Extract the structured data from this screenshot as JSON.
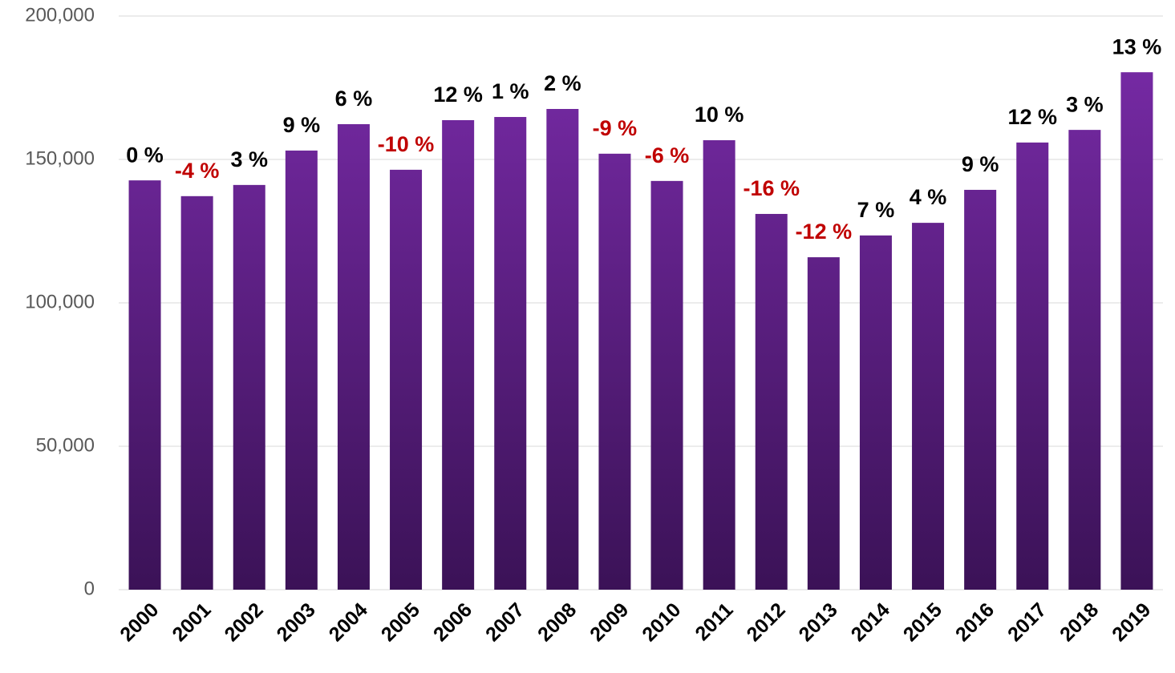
{
  "chart_data": {
    "type": "bar",
    "categories": [
      "2000",
      "2001",
      "2002",
      "2003",
      "2004",
      "2005",
      "2006",
      "2007",
      "2008",
      "2009",
      "2010",
      "2011",
      "2012",
      "2013",
      "2014",
      "2015",
      "2016",
      "2017",
      "2018",
      "2019"
    ],
    "values": [
      142700,
      137200,
      141100,
      153100,
      162300,
      146400,
      163700,
      164800,
      167600,
      152000,
      142500,
      156700,
      131000,
      115900,
      123500,
      127900,
      139400,
      155900,
      160300,
      180400
    ],
    "changes": [
      0,
      -4,
      3,
      9,
      6,
      -10,
      12,
      1,
      2,
      -9,
      -6,
      10,
      -16,
      -12,
      7,
      4,
      9,
      12,
      3,
      13
    ],
    "change_labels": [
      "0 %",
      "-4 %",
      "3 %",
      "9 %",
      "6 %",
      "-10 %",
      "12 %",
      "1 %",
      "2 %",
      "-9 %",
      "-6 %",
      "10 %",
      "-16 %",
      "-12 %",
      "7 %",
      "4 %",
      "9 %",
      "12 %",
      "3 %",
      "13 %"
    ],
    "color_top": "#7b2cab",
    "color_bottom": "#3b1257",
    "positive_label_color": "#000000",
    "negative_label_color": "#c00000",
    "ylim": [
      0,
      200000
    ],
    "yticks": [
      0,
      {
        "value": 50000,
        "label": "50,000"
      },
      {
        "value": 100000,
        "label": "100,000"
      },
      {
        "value": 150000,
        "label": "150,000"
      },
      {
        "value": 200000,
        "label": "200,000"
      }
    ],
    "grid": true
  }
}
